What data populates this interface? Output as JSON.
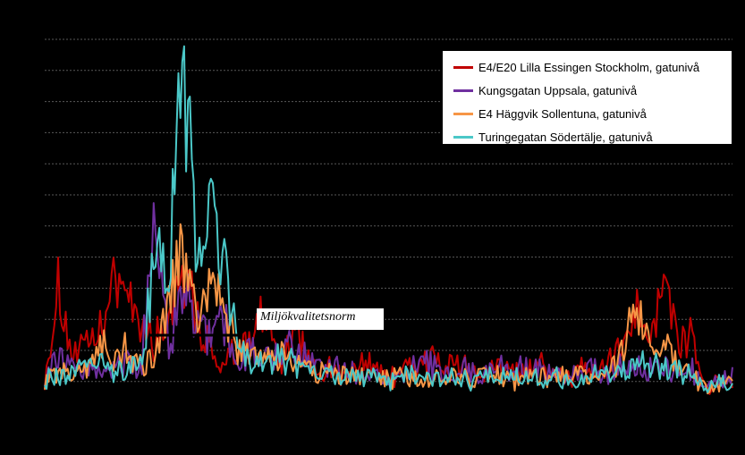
{
  "chart_data": {
    "type": "line",
    "title": "",
    "xlabel": "",
    "ylabel": "",
    "grid": true,
    "legend_position": "top-right",
    "reference_line": {
      "label": "Miljökvalitetsnorm"
    },
    "series": [
      {
        "name": "E4/E20 Lilla Essingen Stockholm, gatunivå",
        "color": "#c00000",
        "keyframes": [
          [
            0,
            1
          ],
          [
            2,
            4
          ],
          [
            4,
            1.8
          ],
          [
            6,
            2
          ],
          [
            8,
            2.5
          ],
          [
            10,
            4
          ],
          [
            12,
            4
          ],
          [
            14,
            3
          ],
          [
            16,
            2.2
          ],
          [
            18,
            3
          ],
          [
            20,
            5
          ],
          [
            22,
            3
          ],
          [
            24,
            2
          ],
          [
            26,
            1.4
          ],
          [
            28,
            2
          ],
          [
            30,
            2.5
          ],
          [
            32,
            3.2
          ],
          [
            34,
            1.4
          ],
          [
            36,
            2.4
          ],
          [
            38,
            2
          ],
          [
            40,
            1.2
          ],
          [
            42,
            1.5
          ],
          [
            44,
            1
          ],
          [
            46,
            1.5
          ],
          [
            48,
            1.5
          ],
          [
            50,
            1
          ],
          [
            52,
            1.5
          ],
          [
            54,
            1.4
          ],
          [
            56,
            1.7
          ],
          [
            58,
            1.5
          ],
          [
            60,
            1.4
          ],
          [
            62,
            1.3
          ],
          [
            64,
            1.2
          ],
          [
            66,
            1.5
          ],
          [
            68,
            1.2
          ],
          [
            70,
            1.3
          ],
          [
            72,
            1.5
          ],
          [
            74,
            1.2
          ],
          [
            76,
            1
          ],
          [
            78,
            1.4
          ],
          [
            80,
            1.2
          ],
          [
            82,
            1.5
          ],
          [
            84,
            2.2
          ],
          [
            86,
            3.5
          ],
          [
            88,
            2.4
          ],
          [
            90,
            4.5
          ],
          [
            92,
            2.2
          ],
          [
            94,
            2.5
          ],
          [
            96,
            0.8
          ],
          [
            98,
            1
          ],
          [
            100,
            0.9
          ]
        ]
      },
      {
        "name": "Kungsgatan Uppsala, gatunivå",
        "color": "#7030a0",
        "keyframes": [
          [
            0,
            1
          ],
          [
            2,
            1.8
          ],
          [
            4,
            1.5
          ],
          [
            6,
            1.2
          ],
          [
            8,
            1.3
          ],
          [
            10,
            1.5
          ],
          [
            12,
            1.6
          ],
          [
            14,
            1.2
          ],
          [
            16,
            7
          ],
          [
            18,
            2
          ],
          [
            20,
            4
          ],
          [
            22,
            2.6
          ],
          [
            24,
            2.5
          ],
          [
            26,
            3
          ],
          [
            28,
            1.5
          ],
          [
            30,
            2
          ],
          [
            32,
            1.8
          ],
          [
            34,
            2
          ],
          [
            36,
            2
          ],
          [
            38,
            1.8
          ],
          [
            40,
            1.5
          ],
          [
            42,
            1.4
          ],
          [
            44,
            1.3
          ],
          [
            46,
            1.2
          ],
          [
            48,
            1.2
          ],
          [
            50,
            1
          ],
          [
            52,
            1.3
          ],
          [
            54,
            1.4
          ],
          [
            56,
            1.5
          ],
          [
            58,
            1.1
          ],
          [
            60,
            1.4
          ],
          [
            62,
            1.3
          ],
          [
            64,
            1.2
          ],
          [
            66,
            1.5
          ],
          [
            68,
            1.3
          ],
          [
            70,
            1.4
          ],
          [
            72,
            1.3
          ],
          [
            74,
            1.2
          ],
          [
            76,
            1
          ],
          [
            78,
            1.3
          ],
          [
            80,
            1.4
          ],
          [
            82,
            1.2
          ],
          [
            84,
            1.4
          ],
          [
            86,
            1.5
          ],
          [
            88,
            1.3
          ],
          [
            90,
            1.4
          ],
          [
            92,
            1.2
          ],
          [
            94,
            1.3
          ],
          [
            96,
            0.8
          ],
          [
            98,
            1
          ],
          [
            100,
            1.1
          ]
        ]
      },
      {
        "name": "E4 Häggvik Sollentuna, gatunivå",
        "color": "#f79646",
        "keyframes": [
          [
            0,
            1
          ],
          [
            2,
            1.3
          ],
          [
            4,
            1.2
          ],
          [
            6,
            1.3
          ],
          [
            8,
            2.5
          ],
          [
            10,
            1.5
          ],
          [
            12,
            2
          ],
          [
            14,
            1.4
          ],
          [
            16,
            2
          ],
          [
            18,
            3.5
          ],
          [
            20,
            5
          ],
          [
            22,
            3
          ],
          [
            24,
            4
          ],
          [
            26,
            3.5
          ],
          [
            28,
            2
          ],
          [
            30,
            1.8
          ],
          [
            32,
            2
          ],
          [
            34,
            1.7
          ],
          [
            36,
            1.6
          ],
          [
            38,
            1.4
          ],
          [
            40,
            1.3
          ],
          [
            42,
            1.2
          ],
          [
            44,
            1.2
          ],
          [
            46,
            1.1
          ],
          [
            48,
            1.1
          ],
          [
            50,
            1
          ],
          [
            52,
            1.2
          ],
          [
            54,
            1
          ],
          [
            56,
            1.1
          ],
          [
            58,
            1
          ],
          [
            60,
            1.2
          ],
          [
            62,
            1
          ],
          [
            64,
            1.1
          ],
          [
            66,
            1.2
          ],
          [
            68,
            1
          ],
          [
            70,
            1.1
          ],
          [
            72,
            1.2
          ],
          [
            74,
            1
          ],
          [
            76,
            1.1
          ],
          [
            78,
            1.1
          ],
          [
            80,
            1.2
          ],
          [
            82,
            1.2
          ],
          [
            84,
            2
          ],
          [
            86,
            3.5
          ],
          [
            88,
            2
          ],
          [
            90,
            2.2
          ],
          [
            92,
            1.5
          ],
          [
            94,
            1.3
          ],
          [
            96,
            0.8
          ],
          [
            98,
            0.9
          ],
          [
            100,
            1
          ]
        ]
      },
      {
        "name": "Turingegatan Södertälje, gatunivå",
        "color": "#4bc8c8",
        "keyframes": [
          [
            0,
            1
          ],
          [
            2,
            1
          ],
          [
            4,
            1.4
          ],
          [
            6,
            1.3
          ],
          [
            8,
            1.6
          ],
          [
            10,
            1.4
          ],
          [
            12,
            1.3
          ],
          [
            14,
            1.4
          ],
          [
            16,
            5
          ],
          [
            18,
            4
          ],
          [
            20,
            11.5
          ],
          [
            22,
            5.5
          ],
          [
            24,
            6
          ],
          [
            26,
            5
          ],
          [
            28,
            2.2
          ],
          [
            30,
            1.6
          ],
          [
            32,
            1.5
          ],
          [
            34,
            1.7
          ],
          [
            36,
            1.6
          ],
          [
            38,
            1.3
          ],
          [
            40,
            1.2
          ],
          [
            42,
            1.1
          ],
          [
            44,
            1.2
          ],
          [
            46,
            1.1
          ],
          [
            48,
            1
          ],
          [
            50,
            1
          ],
          [
            52,
            1.2
          ],
          [
            54,
            1.1
          ],
          [
            56,
            1
          ],
          [
            58,
            1.1
          ],
          [
            60,
            1.2
          ],
          [
            62,
            1
          ],
          [
            64,
            1.1
          ],
          [
            66,
            1
          ],
          [
            68,
            1.1
          ],
          [
            70,
            1.2
          ],
          [
            72,
            1
          ],
          [
            74,
            1.1
          ],
          [
            76,
            1
          ],
          [
            78,
            1.1
          ],
          [
            80,
            1.2
          ],
          [
            82,
            1.1
          ],
          [
            84,
            1.3
          ],
          [
            86,
            1.5
          ],
          [
            88,
            1.4
          ],
          [
            90,
            1.5
          ],
          [
            92,
            1.3
          ],
          [
            94,
            1.2
          ],
          [
            96,
            0.8
          ],
          [
            98,
            0.9
          ],
          [
            100,
            1
          ]
        ]
      }
    ]
  }
}
